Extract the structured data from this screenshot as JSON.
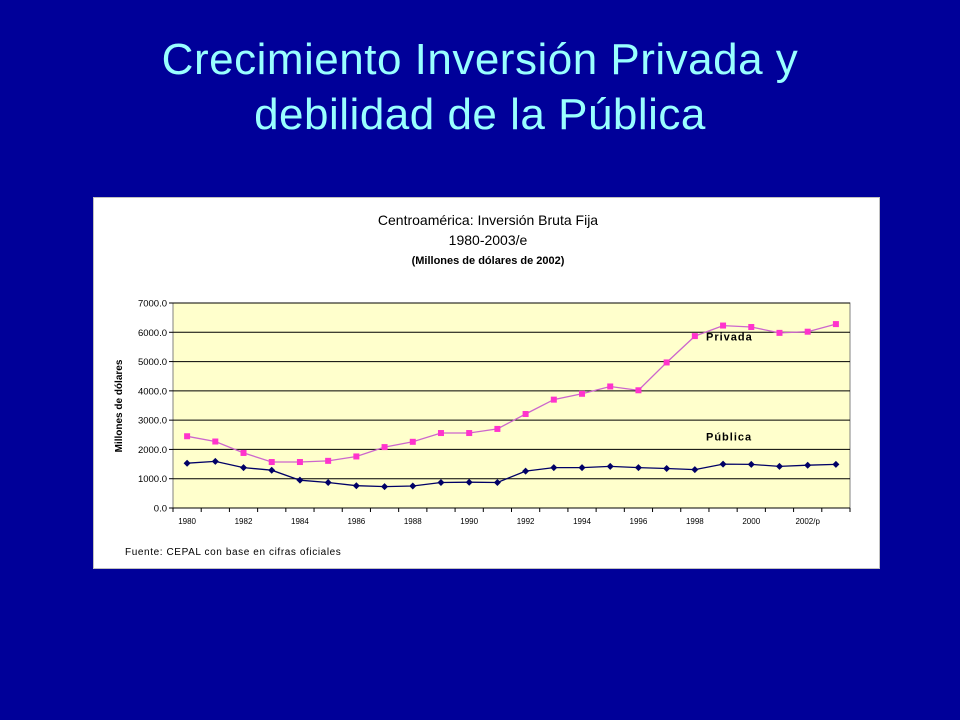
{
  "slide": {
    "title_line1": "Crecimiento Inversión Privada y",
    "title_line2": "debilidad de la Pública"
  },
  "colors": {
    "background": "#000099",
    "title": "#99ffff",
    "plot_area": "#ffffcc",
    "privada": "#ff33cc",
    "privada_line": "#cc66cc",
    "publica": "#000066"
  },
  "chart_data": {
    "type": "line",
    "title": "Centroamérica: Inversión Bruta Fija",
    "subtitle": "1980-2003/e",
    "subtitle2": "(Millones de dólares de 2002)",
    "ylabel": "Millones de dólares",
    "xlabel": "",
    "ylim": [
      0,
      7000
    ],
    "yticks": [
      "0.0",
      "1000.0",
      "2000.0",
      "3000.0",
      "4000.0",
      "5000.0",
      "6000.0",
      "7000.0"
    ],
    "xticks": [
      "1980",
      "1982",
      "1984",
      "1986",
      "1988",
      "1990",
      "1992",
      "1994",
      "1996",
      "1998",
      "2000",
      "2002/p"
    ],
    "grid": true,
    "source": "Fuente: CEPAL con base en cifras oficiales",
    "x": [
      "1980",
      "1981",
      "1982",
      "1983",
      "1984",
      "1985",
      "1986",
      "1987",
      "1988",
      "1989",
      "1990",
      "1991",
      "1992",
      "1993",
      "1994",
      "1995",
      "1996",
      "1997",
      "1998",
      "1999",
      "2000",
      "2001",
      "2002",
      "2003"
    ],
    "series": [
      {
        "name": "Privada",
        "marker": "square",
        "values": [
          2450,
          2270,
          1880,
          1570,
          1570,
          1610,
          1760,
          2080,
          2260,
          2560,
          2560,
          2700,
          3210,
          3700,
          3900,
          4150,
          4020,
          4970,
          5870,
          6230,
          6180,
          5980,
          6020,
          6280
        ]
      },
      {
        "name": "Pública",
        "marker": "diamond",
        "values": [
          1530,
          1590,
          1380,
          1290,
          950,
          870,
          760,
          730,
          750,
          870,
          880,
          870,
          1260,
          1380,
          1380,
          1420,
          1380,
          1350,
          1310,
          1500,
          1490,
          1420,
          1460,
          1490
        ]
      }
    ]
  }
}
